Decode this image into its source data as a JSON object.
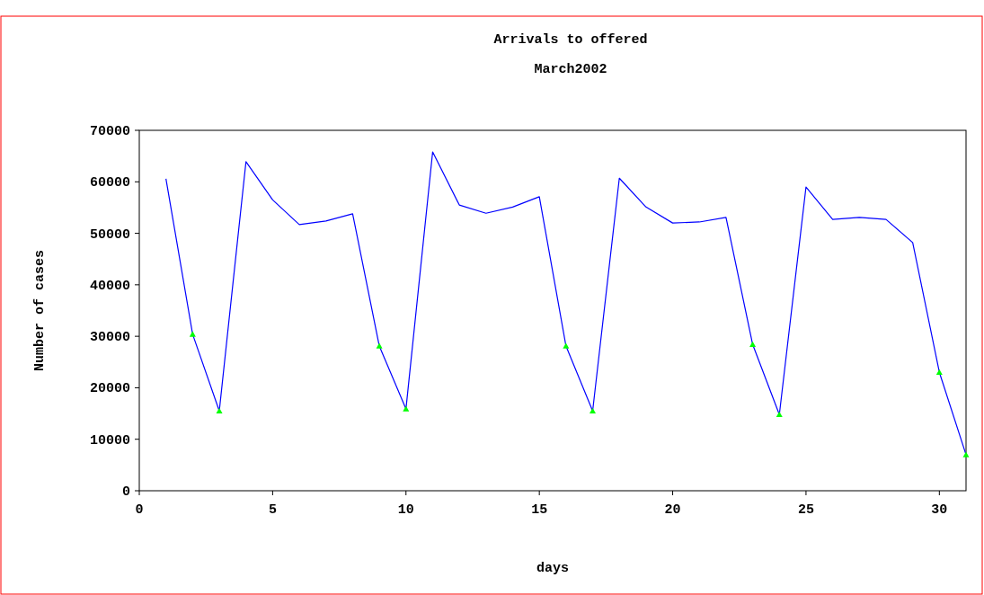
{
  "chart_data": {
    "type": "line",
    "title": "Arrivals to offered",
    "subtitle": "March2002",
    "xlabel": "days",
    "ylabel": "Number of cases",
    "xlim": [
      0,
      31
    ],
    "xticks": [
      0,
      5,
      10,
      15,
      20,
      25,
      30
    ],
    "ylim": [
      0,
      70000
    ],
    "yticks": [
      0,
      10000,
      20000,
      30000,
      40000,
      50000,
      60000,
      70000
    ],
    "grid": false,
    "series": [
      {
        "color": "#0000ff",
        "marker": "none",
        "x": [
          1,
          2,
          3,
          4,
          5,
          6,
          7,
          8,
          9,
          10,
          11,
          12,
          13,
          14,
          15,
          16,
          17,
          18,
          19,
          20,
          21,
          22,
          23,
          24,
          25,
          26,
          27,
          28,
          29,
          30,
          31
        ],
        "values": [
          60600,
          30400,
          15500,
          63900,
          56500,
          51700,
          52400,
          53800,
          28100,
          15900,
          65800,
          55500,
          53900,
          55100,
          57100,
          28100,
          15500,
          60700,
          55100,
          52000,
          52200,
          53100,
          28400,
          14800,
          59000,
          52700,
          53100,
          52700,
          48200,
          23000,
          7000
        ]
      },
      {
        "type": "scatter",
        "color": "#00ff00",
        "marker": "triangle",
        "x": [
          2,
          3,
          9,
          10,
          16,
          17,
          23,
          24,
          30,
          31
        ],
        "values": [
          30400,
          15500,
          28100,
          15900,
          28100,
          15500,
          28400,
          14800,
          23000,
          7000
        ]
      }
    ]
  }
}
